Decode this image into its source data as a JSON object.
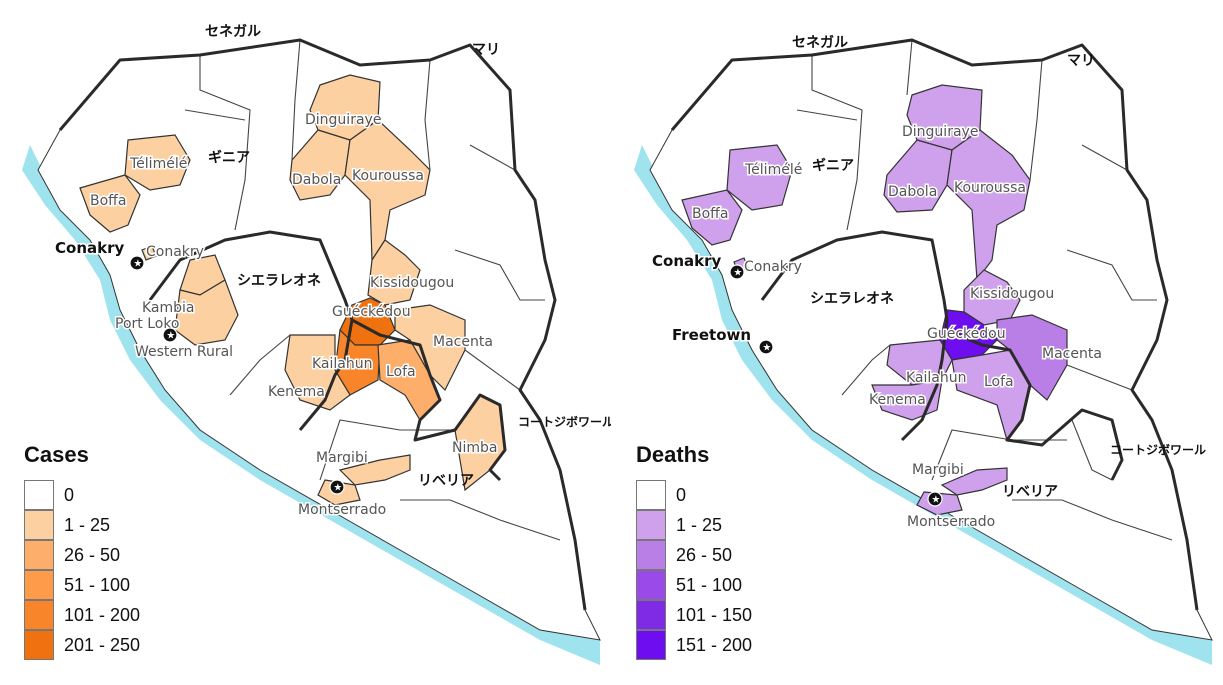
{
  "maps": [
    {
      "id": "cases",
      "legend_title": "Cases",
      "legend": [
        {
          "label": "0",
          "color": "#ffffff"
        },
        {
          "label": "1 - 25",
          "color": "#fdd0a2"
        },
        {
          "label": "26 - 50",
          "color": "#fdae6b"
        },
        {
          "label": "51 - 100",
          "color": "#fd9b4a"
        },
        {
          "label": "101 - 200",
          "color": "#f8852a"
        },
        {
          "label": "201 - 250",
          "color": "#ef7110"
        }
      ],
      "countries": [
        "セネガル",
        "マリ",
        "ギニア",
        "シエラレオネ",
        "リベリア",
        "コートジボワール"
      ],
      "cities": [
        "Conakry"
      ],
      "districts": [
        {
          "name": "Dinguiraye",
          "bin": 1
        },
        {
          "name": "Télimélé",
          "bin": 1
        },
        {
          "name": "Boffa",
          "bin": 1
        },
        {
          "name": "Dabola",
          "bin": 1
        },
        {
          "name": "Kouroussa",
          "bin": 1
        },
        {
          "name": "Conakry",
          "bin": 1
        },
        {
          "name": "Kissidougou",
          "bin": 1
        },
        {
          "name": "Kambia",
          "bin": 1
        },
        {
          "name": "Port Loko",
          "bin": 1
        },
        {
          "name": "Western Rural",
          "bin": 1
        },
        {
          "name": "Guéckédou",
          "bin": 5
        },
        {
          "name": "Macenta",
          "bin": 1
        },
        {
          "name": "Kailahun",
          "bin": 4
        },
        {
          "name": "Kenema",
          "bin": 1
        },
        {
          "name": "Lofa",
          "bin": 2
        },
        {
          "name": "Nimba",
          "bin": 1
        },
        {
          "name": "Margibi",
          "bin": 1
        },
        {
          "name": "Montserrado",
          "bin": 1
        }
      ]
    },
    {
      "id": "deaths",
      "legend_title": "Deaths",
      "legend": [
        {
          "label": "0",
          "color": "#ffffff"
        },
        {
          "label": "1 - 25",
          "color": "#cfa0ec"
        },
        {
          "label": "26 - 50",
          "color": "#b97fe6"
        },
        {
          "label": "51 - 100",
          "color": "#9a4ae8"
        },
        {
          "label": "101 - 150",
          "color": "#7f2be6"
        },
        {
          "label": "151 - 200",
          "color": "#6d0df0"
        }
      ],
      "countries": [
        "セネガル",
        "マリ",
        "ギニア",
        "シエラレオネ",
        "リベリア",
        "コートジボワール"
      ],
      "cities": [
        "Conakry",
        "Freetown"
      ],
      "districts": [
        {
          "name": "Dinguiraye",
          "bin": 1
        },
        {
          "name": "Télimélé",
          "bin": 1
        },
        {
          "name": "Boffa",
          "bin": 1
        },
        {
          "name": "Dabola",
          "bin": 1
        },
        {
          "name": "Kouroussa",
          "bin": 1
        },
        {
          "name": "Conakry",
          "bin": 1
        },
        {
          "name": "Kissidougou",
          "bin": 1
        },
        {
          "name": "Guéckédou",
          "bin": 5
        },
        {
          "name": "Macenta",
          "bin": 2
        },
        {
          "name": "Kailahun",
          "bin": 1
        },
        {
          "name": "Kenema",
          "bin": 1
        },
        {
          "name": "Lofa",
          "bin": 1
        },
        {
          "name": "Margibi",
          "bin": 1
        },
        {
          "name": "Montserrado",
          "bin": 1
        }
      ]
    }
  ]
}
